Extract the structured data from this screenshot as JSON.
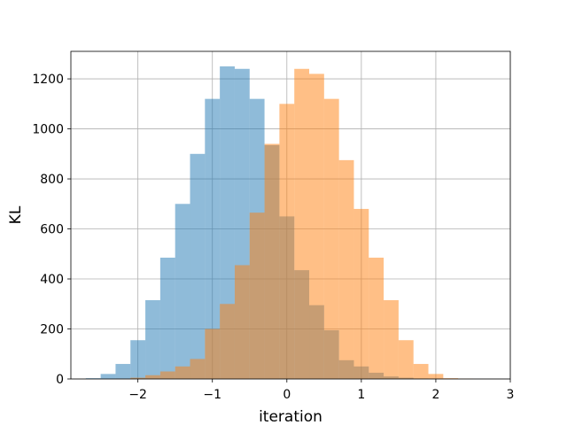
{
  "chart_data": {
    "type": "histogram",
    "title": "",
    "xlabel": "iteration",
    "ylabel": "KL",
    "xlim": [
      -2.9,
      3.0
    ],
    "ylim": [
      0,
      1310
    ],
    "grid": true,
    "x_ticks": [
      -2,
      -1,
      0,
      1,
      2,
      3
    ],
    "x_tick_labels": [
      "−2",
      "−1",
      "0",
      "1",
      "2",
      "3"
    ],
    "y_ticks": [
      0,
      200,
      400,
      600,
      800,
      1000,
      1200
    ],
    "y_tick_labels": [
      "0",
      "200",
      "400",
      "600",
      "800",
      "1000",
      "1200"
    ],
    "series": [
      {
        "color": "#1f77b4",
        "opacity": 0.5,
        "bin_edges": [
          -2.7,
          -2.5,
          -2.3,
          -2.1,
          -1.9,
          -1.7,
          -1.5,
          -1.3,
          -1.1,
          -0.9,
          -0.7,
          -0.5,
          -0.3,
          -0.1,
          0.1,
          0.3,
          0.5,
          0.7,
          0.9,
          1.1,
          1.3,
          1.5,
          1.7,
          1.9,
          2.1,
          2.3
        ],
        "counts": [
          3,
          20,
          60,
          155,
          315,
          485,
          700,
          900,
          1120,
          1250,
          1240,
          1120,
          935,
          650,
          435,
          295,
          195,
          75,
          50,
          25,
          10,
          5,
          2,
          1,
          0
        ]
      },
      {
        "color": "#ff7f0e",
        "opacity": 0.5,
        "bin_edges": [
          -2.3,
          -2.1,
          -1.9,
          -1.7,
          -1.5,
          -1.3,
          -1.1,
          -0.9,
          -0.7,
          -0.5,
          -0.3,
          -0.1,
          0.1,
          0.3,
          0.5,
          0.7,
          0.9,
          1.1,
          1.3,
          1.5,
          1.7,
          1.9,
          2.1,
          2.3,
          2.5,
          2.7
        ],
        "counts": [
          1,
          5,
          15,
          30,
          50,
          80,
          200,
          300,
          455,
          665,
          940,
          1100,
          1240,
          1220,
          1120,
          875,
          680,
          485,
          315,
          155,
          60,
          20,
          3,
          1,
          0
        ]
      }
    ]
  }
}
